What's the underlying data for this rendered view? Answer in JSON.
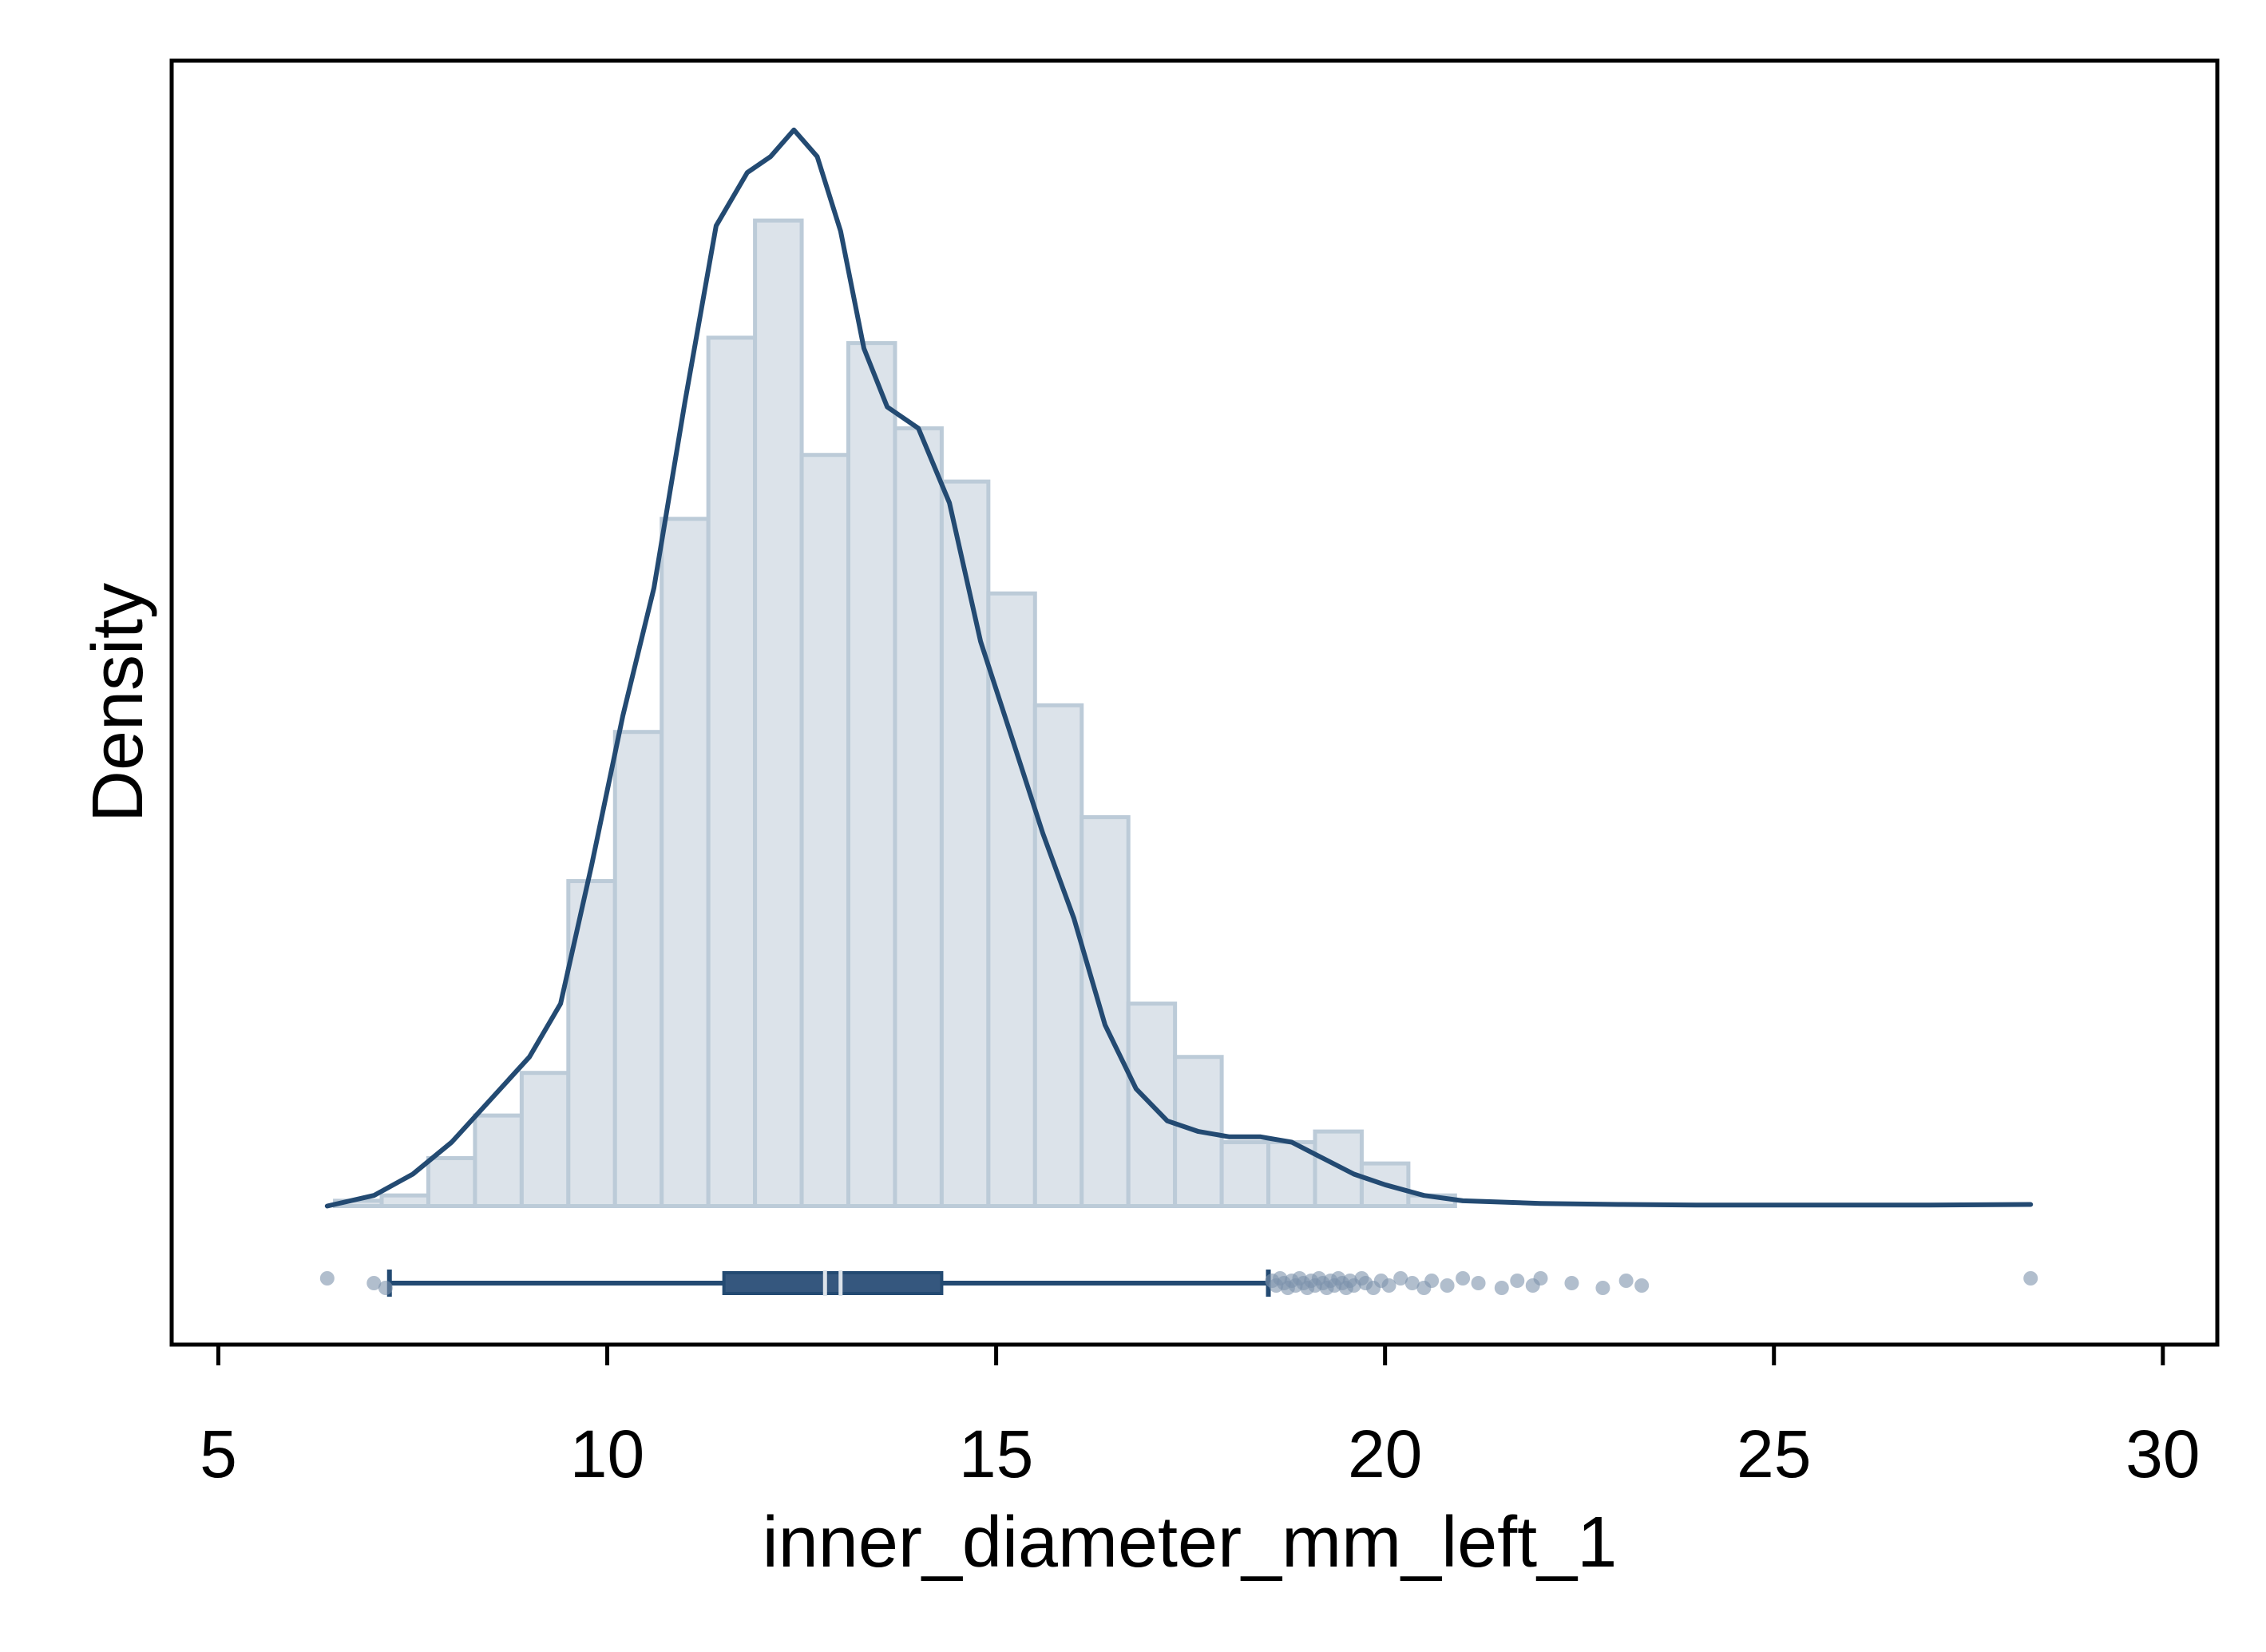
{
  "chart_data": {
    "type": "histogram",
    "title": "",
    "xlabel": "inner_diameter_mm_left_1",
    "ylabel": "Density",
    "xlim": [
      4.4,
      30.7
    ],
    "ylim": [
      -0.026,
      0.215
    ],
    "x_ticks": [
      {
        "value": 5,
        "label": "5"
      },
      {
        "value": 10,
        "label": "10"
      },
      {
        "value": 15,
        "label": "15"
      },
      {
        "value": 20,
        "label": "20"
      },
      {
        "value": 25,
        "label": "25"
      },
      {
        "value": 30,
        "label": "30"
      }
    ],
    "y_ticks_shown": false,
    "grid": false,
    "legend": "none",
    "colors": {
      "bar_fill": "#dce3ea",
      "bar_edge": "#bccbd8",
      "kde_line": "#234a72",
      "box": "#35577e",
      "outlier": "#7d93ab"
    },
    "histogram": {
      "bin_edges": [
        6.5,
        7.1,
        7.7,
        8.3,
        8.9,
        9.5,
        10.1,
        10.7,
        11.3,
        11.9,
        12.5,
        13.1,
        13.7,
        14.3,
        14.9,
        15.5,
        16.1,
        16.7,
        17.3,
        17.9,
        18.5,
        19.1,
        19.7,
        20.3,
        20.9
      ],
      "density": [
        0.001,
        0.002,
        0.009,
        0.017,
        0.025,
        0.061,
        0.089,
        0.129,
        0.163,
        0.185,
        0.141,
        0.162,
        0.146,
        0.136,
        0.115,
        0.094,
        0.073,
        0.038,
        0.028,
        0.012,
        0.012,
        0.014,
        0.008,
        0.002
      ]
    },
    "kde": {
      "x": [
        6.4,
        7.0,
        7.5,
        8.0,
        8.5,
        9.0,
        9.4,
        9.8,
        10.2,
        10.6,
        11.0,
        11.4,
        11.8,
        12.1,
        12.4,
        12.7,
        13.0,
        13.3,
        13.6,
        14.0,
        14.4,
        14.8,
        15.2,
        15.6,
        16.0,
        16.4,
        16.8,
        17.2,
        17.6,
        18.0,
        18.4,
        18.8,
        19.2,
        19.6,
        20.0,
        20.5,
        21.0,
        22.0,
        23.0,
        24.0,
        25.0,
        26.0,
        27.0,
        28.3
      ],
      "y": [
        0.0,
        0.002,
        0.006,
        0.012,
        0.02,
        0.028,
        0.038,
        0.064,
        0.092,
        0.116,
        0.151,
        0.184,
        0.194,
        0.197,
        0.202,
        0.197,
        0.183,
        0.161,
        0.15,
        0.146,
        0.132,
        0.106,
        0.088,
        0.07,
        0.054,
        0.034,
        0.022,
        0.016,
        0.014,
        0.013,
        0.013,
        0.012,
        0.009,
        0.006,
        0.004,
        0.002,
        0.001,
        0.0005,
        0.0003,
        0.0002,
        0.0002,
        0.0002,
        0.0002,
        0.0003
      ]
    },
    "boxplot": {
      "whisker_low": 7.2,
      "q1": 11.5,
      "median": 12.8,
      "mean": 13.0,
      "q3": 14.3,
      "whisker_high": 18.5,
      "outliers": [
        6.4,
        7.0,
        7.15,
        18.55,
        18.6,
        18.65,
        18.7,
        18.75,
        18.8,
        18.85,
        18.9,
        18.95,
        19.0,
        19.05,
        19.1,
        19.15,
        19.2,
        19.25,
        19.3,
        19.35,
        19.4,
        19.45,
        19.5,
        19.55,
        19.6,
        19.7,
        19.75,
        19.85,
        19.95,
        20.05,
        20.2,
        20.35,
        20.5,
        20.6,
        20.8,
        21.0,
        21.2,
        21.5,
        21.7,
        21.9,
        22.0,
        22.4,
        22.8,
        23.1,
        23.3,
        28.3
      ]
    }
  }
}
